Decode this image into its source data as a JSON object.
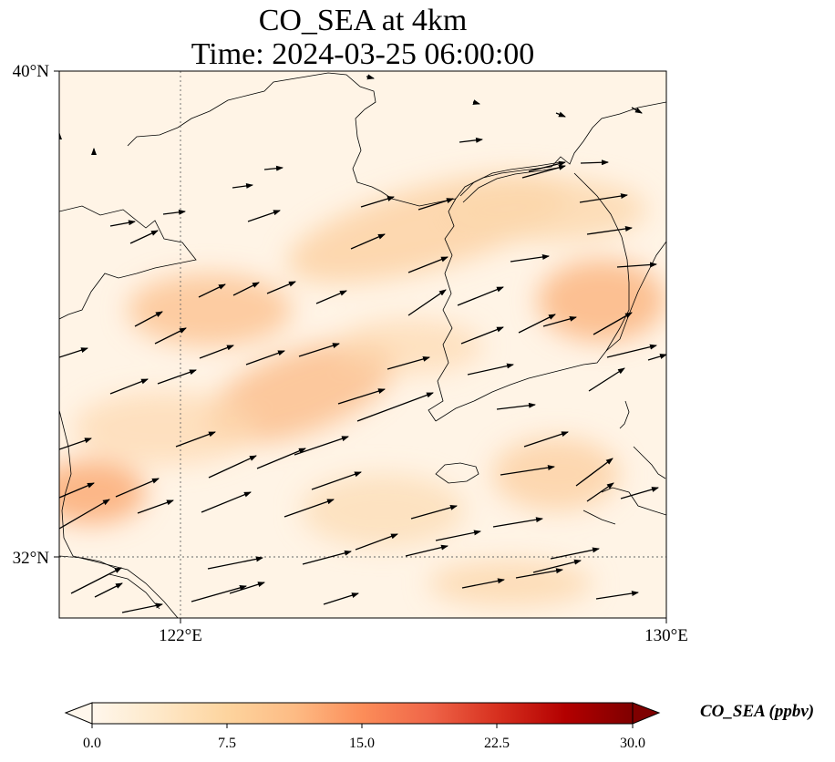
{
  "title": {
    "line1": "CO_SEA at 4km",
    "line2": "Time: 2024-03-25 06:00:00"
  },
  "map": {
    "projection": "PlateCarree",
    "lon_range": [
      120.0,
      130.0
    ],
    "lat_range": [
      31.0,
      40.0
    ],
    "gridlines": "dotted",
    "lat_ticks": [
      {
        "value": 40,
        "label": "40°N"
      },
      {
        "value": 32,
        "label": "32°N"
      }
    ],
    "lon_ticks": [
      {
        "value": 122,
        "label": "122°E"
      },
      {
        "value": 130,
        "label": "130°E"
      }
    ],
    "coastline_color": "#000000",
    "wind_vectors": "black arrows, predominantly westerly/south-westerly flow"
  },
  "colorbar": {
    "label": "CO_SEA (ppbv)",
    "colormap": "OrRd",
    "min": 0.0,
    "max": 30.0,
    "extend": "both",
    "tick_labels": [
      "0.0",
      "7.5",
      "15.0",
      "22.5",
      "30.0"
    ],
    "colors": [
      "#fff7ec",
      "#fee8c8",
      "#fdd49e",
      "#fdbb84",
      "#fc8d59",
      "#ef6548",
      "#d7301f",
      "#b30000",
      "#7f0000"
    ]
  }
}
